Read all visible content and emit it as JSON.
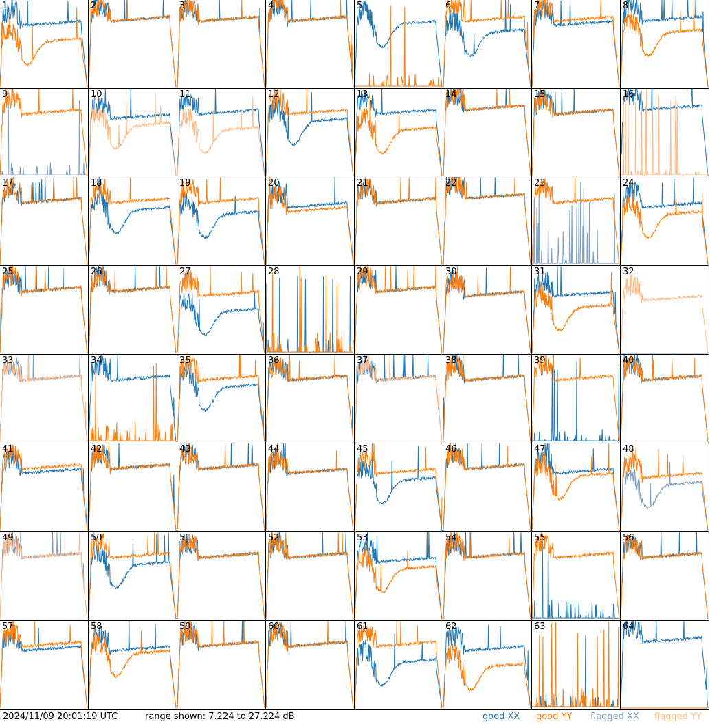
{
  "footer": {
    "timestamp": "2024/11/09 20:01:19 UTC",
    "range_text": "range shown: 7.224 to 27.224 dB"
  },
  "legend": [
    {
      "label": "good XX",
      "color": "#1f77b4"
    },
    {
      "label": "good YY",
      "color": "#ff7f0e"
    },
    {
      "label": "flagged XX",
      "color": "#7f9fbf"
    },
    {
      "label": "flagged YY",
      "color": "#ffbb88"
    }
  ],
  "chart_data": {
    "type": "line",
    "title": "",
    "xlabel": "",
    "ylabel": "dB",
    "ylim": [
      7.224,
      27.224
    ],
    "grid": "8x8 small multiples",
    "panels": [
      {
        "id": "1",
        "xx": [
          "good",
          "normal",
          21
        ],
        "yy": [
          "good",
          "dip",
          17
        ]
      },
      {
        "id": "2",
        "xx": [
          "good",
          "normal",
          22
        ],
        "yy": [
          "good",
          "normal",
          22
        ]
      },
      {
        "id": "3",
        "xx": [
          "good",
          "normal",
          22
        ],
        "yy": [
          "good",
          "normal",
          22
        ]
      },
      {
        "id": "4",
        "xx": [
          "good",
          "normal",
          22
        ],
        "yy": [
          "good",
          "normal",
          22
        ]
      },
      {
        "id": "5",
        "xx": [
          "good",
          "dip",
          21
        ],
        "yy": [
          "good",
          "spiky",
          9
        ]
      },
      {
        "id": "6",
        "xx": [
          "good",
          "dip",
          19
        ],
        "yy": [
          "good",
          "normal",
          22
        ]
      },
      {
        "id": "7",
        "xx": [
          "good",
          "normal",
          21
        ],
        "yy": [
          "good",
          "normal",
          22
        ]
      },
      {
        "id": "8",
        "xx": [
          "good",
          "normal",
          22
        ],
        "yy": [
          "good",
          "dip",
          19
        ]
      },
      {
        "id": "9",
        "xx": [
          "flagged",
          "spiky",
          9
        ],
        "yy": [
          "good",
          "normal",
          21
        ]
      },
      {
        "id": "10",
        "xx": [
          "good",
          "normal",
          20
        ],
        "yy": [
          "flagged",
          "dip",
          18
        ]
      },
      {
        "id": "11",
        "xx": [
          "good",
          "normal",
          21
        ],
        "yy": [
          "flagged",
          "dip",
          17
        ]
      },
      {
        "id": "12",
        "xx": [
          "good",
          "dip",
          19
        ],
        "yy": [
          "good",
          "normal",
          21
        ]
      },
      {
        "id": "13",
        "xx": [
          "good",
          "normal",
          21
        ],
        "yy": [
          "good",
          "dip",
          17
        ]
      },
      {
        "id": "14",
        "xx": [
          "good",
          "normal",
          22
        ],
        "yy": [
          "good",
          "normal",
          22
        ]
      },
      {
        "id": "15",
        "xx": [
          "good",
          "normal",
          21
        ],
        "yy": [
          "good",
          "normal",
          21
        ]
      },
      {
        "id": "16",
        "xx": [
          "good",
          "normal",
          22
        ],
        "yy": [
          "flagged",
          "spiky",
          8
        ]
      },
      {
        "id": "17",
        "xx": [
          "good",
          "normal",
          21
        ],
        "yy": [
          "good",
          "normal",
          21
        ]
      },
      {
        "id": "18",
        "xx": [
          "good",
          "dip",
          19
        ],
        "yy": [
          "good",
          "normal",
          21
        ]
      },
      {
        "id": "19",
        "xx": [
          "good",
          "dip",
          18
        ],
        "yy": [
          "good",
          "normal",
          21
        ]
      },
      {
        "id": "20",
        "xx": [
          "good",
          "normal",
          20
        ],
        "yy": [
          "good",
          "normal",
          19
        ]
      },
      {
        "id": "21",
        "xx": [
          "good",
          "normal",
          21
        ],
        "yy": [
          "good",
          "normal",
          21
        ]
      },
      {
        "id": "22",
        "xx": [
          "good",
          "normal",
          22
        ],
        "yy": [
          "good",
          "normal",
          22
        ]
      },
      {
        "id": "23",
        "xx": [
          "flagged",
          "spiky",
          16
        ],
        "yy": [
          "good",
          "normal",
          21
        ]
      },
      {
        "id": "24",
        "xx": [
          "good",
          "normal",
          20
        ],
        "yy": [
          "good",
          "dip",
          18
        ]
      },
      {
        "id": "25",
        "xx": [
          "good",
          "normal",
          21
        ],
        "yy": [
          "good",
          "normal",
          21
        ]
      },
      {
        "id": "26",
        "xx": [
          "good",
          "normal",
          21
        ],
        "yy": [
          "good",
          "normal",
          21
        ]
      },
      {
        "id": "27",
        "xx": [
          "good",
          "dip",
          16
        ],
        "yy": [
          "good",
          "normal",
          20
        ]
      },
      {
        "id": "28",
        "xx": [
          "good",
          "spiky",
          9
        ],
        "yy": [
          "good",
          "spiky",
          10
        ]
      },
      {
        "id": "29",
        "xx": [
          "good",
          "normal",
          21
        ],
        "yy": [
          "good",
          "normal",
          21
        ]
      },
      {
        "id": "30",
        "xx": [
          "good",
          "normal",
          20
        ],
        "yy": [
          "good",
          "normal",
          20
        ]
      },
      {
        "id": "31",
        "xx": [
          "good",
          "normal",
          20
        ],
        "yy": [
          "good",
          "dip",
          17
        ]
      },
      {
        "id": "32",
        "xx": [
          "flagged",
          "absent",
          7
        ],
        "yy": [
          "flagged",
          "normal",
          19
        ]
      },
      {
        "id": "33",
        "xx": [
          "flagged",
          "normal",
          21
        ],
        "yy": [
          "flagged",
          "normal",
          21
        ]
      },
      {
        "id": "34",
        "xx": [
          "good",
          "normal",
          21
        ],
        "yy": [
          "good",
          "spiky",
          10
        ]
      },
      {
        "id": "35",
        "xx": [
          "good",
          "dip",
          19
        ],
        "yy": [
          "good",
          "normal",
          21
        ]
      },
      {
        "id": "36",
        "xx": [
          "good",
          "normal",
          21
        ],
        "yy": [
          "good",
          "normal",
          21
        ]
      },
      {
        "id": "37",
        "xx": [
          "good",
          "normal",
          21
        ],
        "yy": [
          "flagged",
          "normal",
          21
        ]
      },
      {
        "id": "38",
        "xx": [
          "good",
          "normal",
          21
        ],
        "yy": [
          "good",
          "normal",
          21
        ]
      },
      {
        "id": "39",
        "xx": [
          "good",
          "spiky",
          9
        ],
        "yy": [
          "good",
          "normal",
          21
        ]
      },
      {
        "id": "40",
        "xx": [
          "good",
          "normal",
          21
        ],
        "yy": [
          "good",
          "normal",
          21
        ]
      },
      {
        "id": "41",
        "xx": [
          "good",
          "normal",
          20
        ],
        "yy": [
          "good",
          "normal",
          21
        ]
      },
      {
        "id": "42",
        "xx": [
          "good",
          "normal",
          21
        ],
        "yy": [
          "good",
          "normal",
          21
        ]
      },
      {
        "id": "43",
        "xx": [
          "good",
          "normal",
          21
        ],
        "yy": [
          "good",
          "normal",
          21
        ]
      },
      {
        "id": "44",
        "xx": [
          "good",
          "normal",
          20
        ],
        "yy": [
          "good",
          "normal",
          20
        ]
      },
      {
        "id": "45",
        "xx": [
          "good",
          "dip",
          18
        ],
        "yy": [
          "good",
          "normal",
          20
        ]
      },
      {
        "id": "46",
        "xx": [
          "good",
          "normal",
          21
        ],
        "yy": [
          "good",
          "normal",
          21
        ]
      },
      {
        "id": "47",
        "xx": [
          "good",
          "normal",
          20
        ],
        "yy": [
          "good",
          "dip",
          19
        ]
      },
      {
        "id": "48",
        "xx": [
          "flagged",
          "dip",
          17
        ],
        "yy": [
          "good",
          "normal",
          19
        ]
      },
      {
        "id": "49",
        "xx": [
          "flagged",
          "normal",
          21
        ],
        "yy": [
          "flagged",
          "normal",
          21
        ]
      },
      {
        "id": "50",
        "xx": [
          "good",
          "dip",
          19
        ],
        "yy": [
          "good",
          "normal",
          21
        ]
      },
      {
        "id": "51",
        "xx": [
          "good",
          "normal",
          21
        ],
        "yy": [
          "good",
          "normal",
          21
        ]
      },
      {
        "id": "52",
        "xx": [
          "good",
          "normal",
          21
        ],
        "yy": [
          "good",
          "normal",
          21
        ]
      },
      {
        "id": "53",
        "xx": [
          "good",
          "normal",
          20
        ],
        "yy": [
          "good",
          "dip",
          18
        ]
      },
      {
        "id": "54",
        "xx": [
          "good",
          "normal",
          21
        ],
        "yy": [
          "good",
          "normal",
          21
        ]
      },
      {
        "id": "55",
        "xx": [
          "good",
          "spiky",
          10
        ],
        "yy": [
          "good",
          "normal",
          21
        ]
      },
      {
        "id": "56",
        "xx": [
          "good",
          "normal",
          21
        ],
        "yy": [
          "good",
          "normal",
          21
        ]
      },
      {
        "id": "57",
        "xx": [
          "good",
          "normal",
          20
        ],
        "yy": [
          "good",
          "normal",
          21
        ]
      },
      {
        "id": "58",
        "xx": [
          "good",
          "normal",
          20
        ],
        "yy": [
          "good",
          "dip",
          19
        ]
      },
      {
        "id": "59",
        "xx": [
          "good",
          "normal",
          21
        ],
        "yy": [
          "good",
          "normal",
          21
        ]
      },
      {
        "id": "60",
        "xx": [
          "good",
          "normal",
          21
        ],
        "yy": [
          "good",
          "normal",
          21
        ]
      },
      {
        "id": "61",
        "xx": [
          "good",
          "dip",
          17
        ],
        "yy": [
          "good",
          "normal",
          21
        ]
      },
      {
        "id": "62",
        "xx": [
          "good",
          "normal",
          20
        ],
        "yy": [
          "good",
          "dip",
          16
        ]
      },
      {
        "id": "63",
        "xx": [
          "good",
          "spiky",
          9
        ],
        "yy": [
          "good",
          "spiky",
          10
        ]
      },
      {
        "id": "64",
        "xx": [
          "good",
          "normal",
          22
        ],
        "yy": [
          "good",
          "absent",
          7
        ]
      }
    ]
  }
}
